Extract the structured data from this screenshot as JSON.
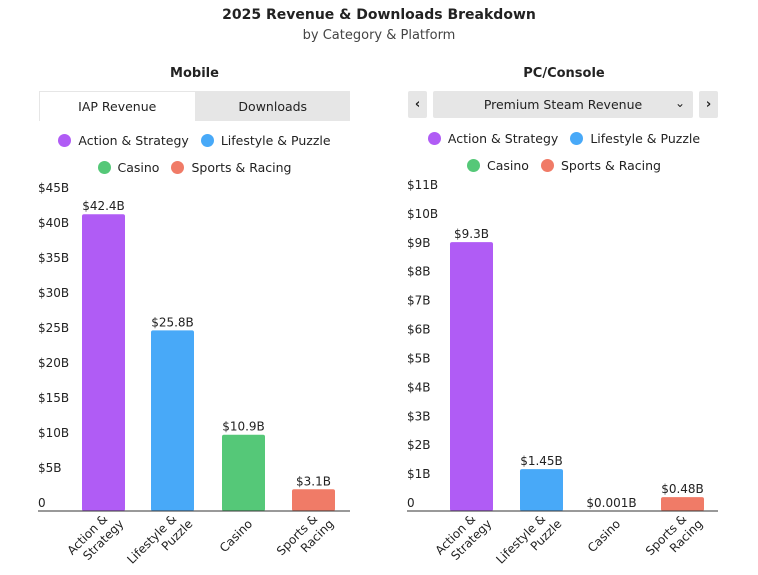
{
  "header": {
    "title": "2025 Revenue & Downloads Breakdown",
    "subtitle": "by Category & Platform"
  },
  "mobile": {
    "title": "Mobile",
    "tabs": [
      {
        "label": "IAP Revenue",
        "active": true
      },
      {
        "label": "Downloads",
        "active": false
      }
    ]
  },
  "pc": {
    "title": "PC/Console",
    "select_value": "Premium Steam Revenue",
    "prev_icon": "chevron-left-icon",
    "next_icon": "chevron-right-icon"
  },
  "legend": [
    {
      "label": "Action & Strategy",
      "color": "#b05cf5"
    },
    {
      "label": "Lifestyle & Puzzle",
      "color": "#48a9f8"
    },
    {
      "label": "Casino",
      "color": "#55c878"
    },
    {
      "label": "Sports & Racing",
      "color": "#f07b67"
    }
  ],
  "chart_data": [
    {
      "type": "bar",
      "name": "mobile-iap-revenue",
      "categories": [
        [
          "Action &",
          "Strategy"
        ],
        [
          "Lifestyle &",
          "Puzzle"
        ],
        [
          "Casino"
        ],
        [
          "Sports &",
          "Racing"
        ]
      ],
      "values": [
        42.4,
        25.8,
        10.9,
        3.1
      ],
      "data_labels": [
        "$42.4B",
        "$25.8B",
        "$10.9B",
        "$3.1B"
      ],
      "ylim": [
        0,
        45
      ],
      "yticks": [
        0,
        5,
        10,
        15,
        20,
        25,
        30,
        35,
        40,
        45
      ],
      "ytick_labels": [
        "0",
        "$5B",
        "$10B",
        "$15B",
        "$20B",
        "$25B",
        "$30B",
        "$35B",
        "$40B",
        "$45B"
      ],
      "grid": false
    },
    {
      "type": "bar",
      "name": "pc-premium-steam-revenue",
      "categories": [
        [
          "Action &",
          "Strategy"
        ],
        [
          "Lifestyle &",
          "Puzzle"
        ],
        [
          "Casino"
        ],
        [
          "Sports &",
          "Racing"
        ]
      ],
      "values": [
        9.3,
        1.45,
        0.001,
        0.48
      ],
      "data_labels": [
        "$9.3B",
        "$1.45B",
        "$0.001B",
        "$0.48B"
      ],
      "ylim": [
        0,
        11
      ],
      "yticks": [
        0,
        1,
        2,
        3,
        4,
        5,
        6,
        7,
        8,
        9,
        10,
        11
      ],
      "ytick_labels": [
        "0",
        "$1B",
        "$2B",
        "$3B",
        "$4B",
        "$5B",
        "$6B",
        "$7B",
        "$8B",
        "$9B",
        "$10B",
        "$11B"
      ],
      "grid": false
    }
  ]
}
